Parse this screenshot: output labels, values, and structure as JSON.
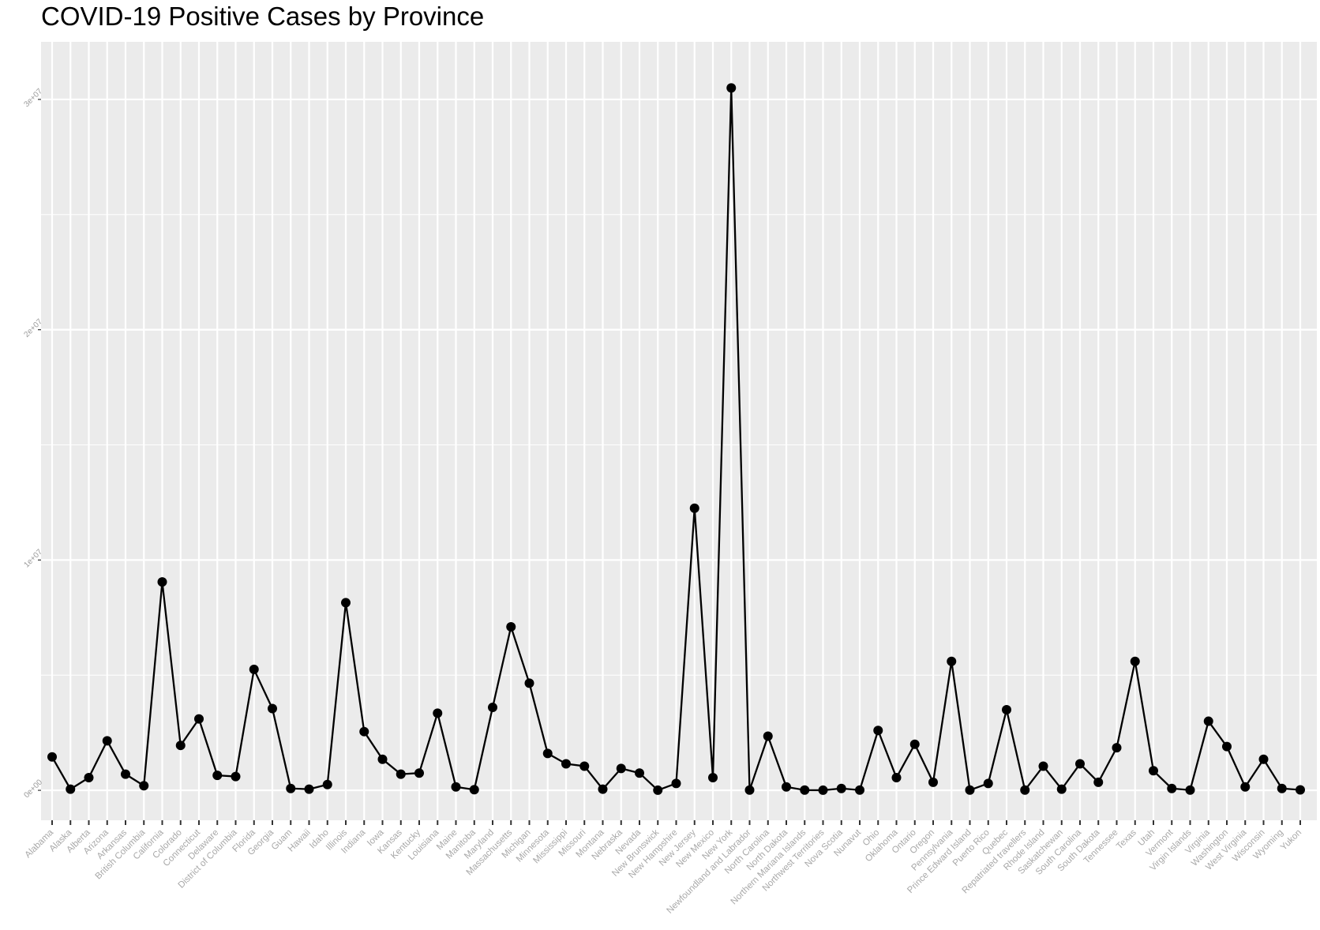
{
  "chart_data": {
    "type": "line",
    "title": "COVID-19 Positive Cases by Province",
    "xlabel": "",
    "ylabel": "",
    "ylim": [
      -1300000,
      32500000
    ],
    "yticks": [
      0,
      10000000,
      20000000,
      30000000
    ],
    "ytick_labels": [
      "0e+00",
      "1e+07",
      "2e+07",
      "3e+07"
    ],
    "grid": true,
    "legend": "none",
    "colors": {
      "panel": "#ebebeb",
      "grid": "#ffffff",
      "line": "#000000",
      "point": "#000000"
    },
    "categories": [
      "Alabama",
      "Alaska",
      "Alberta",
      "Arizona",
      "Arkansas",
      "British Columbia",
      "California",
      "Colorado",
      "Connecticut",
      "Delaware",
      "District of Columbia",
      "Florida",
      "Georgia",
      "Guam",
      "Hawaii",
      "Idaho",
      "Illinois",
      "Indiana",
      "Iowa",
      "Kansas",
      "Kentucky",
      "Louisiana",
      "Maine",
      "Manitoba",
      "Maryland",
      "Massachusetts",
      "Michigan",
      "Minnesota",
      "Mississippi",
      "Missouri",
      "Montana",
      "Nebraska",
      "Nevada",
      "New Brunswick",
      "New Hampshire",
      "New Jersey",
      "New Mexico",
      "New York",
      "Newfoundland and Labrador",
      "North Carolina",
      "North Dakota",
      "Northern Mariana Islands",
      "Northwest Territories",
      "Nova Scotia",
      "Nunavut",
      "Ohio",
      "Oklahoma",
      "Ontario",
      "Oregon",
      "Pennsylvania",
      "Prince Edward Island",
      "Puerto Rico",
      "Quebec",
      "Repatriated travellers",
      "Rhode Island",
      "Saskatchewan",
      "South Carolina",
      "South Dakota",
      "Tennessee",
      "Texas",
      "Utah",
      "Vermont",
      "Virgin Islands",
      "Virginia",
      "Washington",
      "West Virginia",
      "Wisconsin",
      "Wyoming",
      "Yukon"
    ],
    "values": [
      1450000,
      50000,
      550000,
      2150000,
      700000,
      200000,
      9050000,
      1950000,
      3100000,
      650000,
      600000,
      5250000,
      3550000,
      80000,
      50000,
      250000,
      8150000,
      2550000,
      1350000,
      700000,
      750000,
      3350000,
      150000,
      30000,
      3600000,
      7100000,
      4650000,
      1600000,
      1150000,
      1050000,
      50000,
      950000,
      750000,
      5000,
      300000,
      12250000,
      550000,
      30500000,
      10000,
      2350000,
      150000,
      10000,
      5000,
      80000,
      10000,
      2600000,
      550000,
      2000000,
      350000,
      5600000,
      10000,
      300000,
      3500000,
      10000,
      1050000,
      50000,
      1150000,
      350000,
      1850000,
      5600000,
      850000,
      80000,
      10000,
      3000000,
      1900000,
      150000,
      1350000,
      80000,
      20000
    ]
  }
}
